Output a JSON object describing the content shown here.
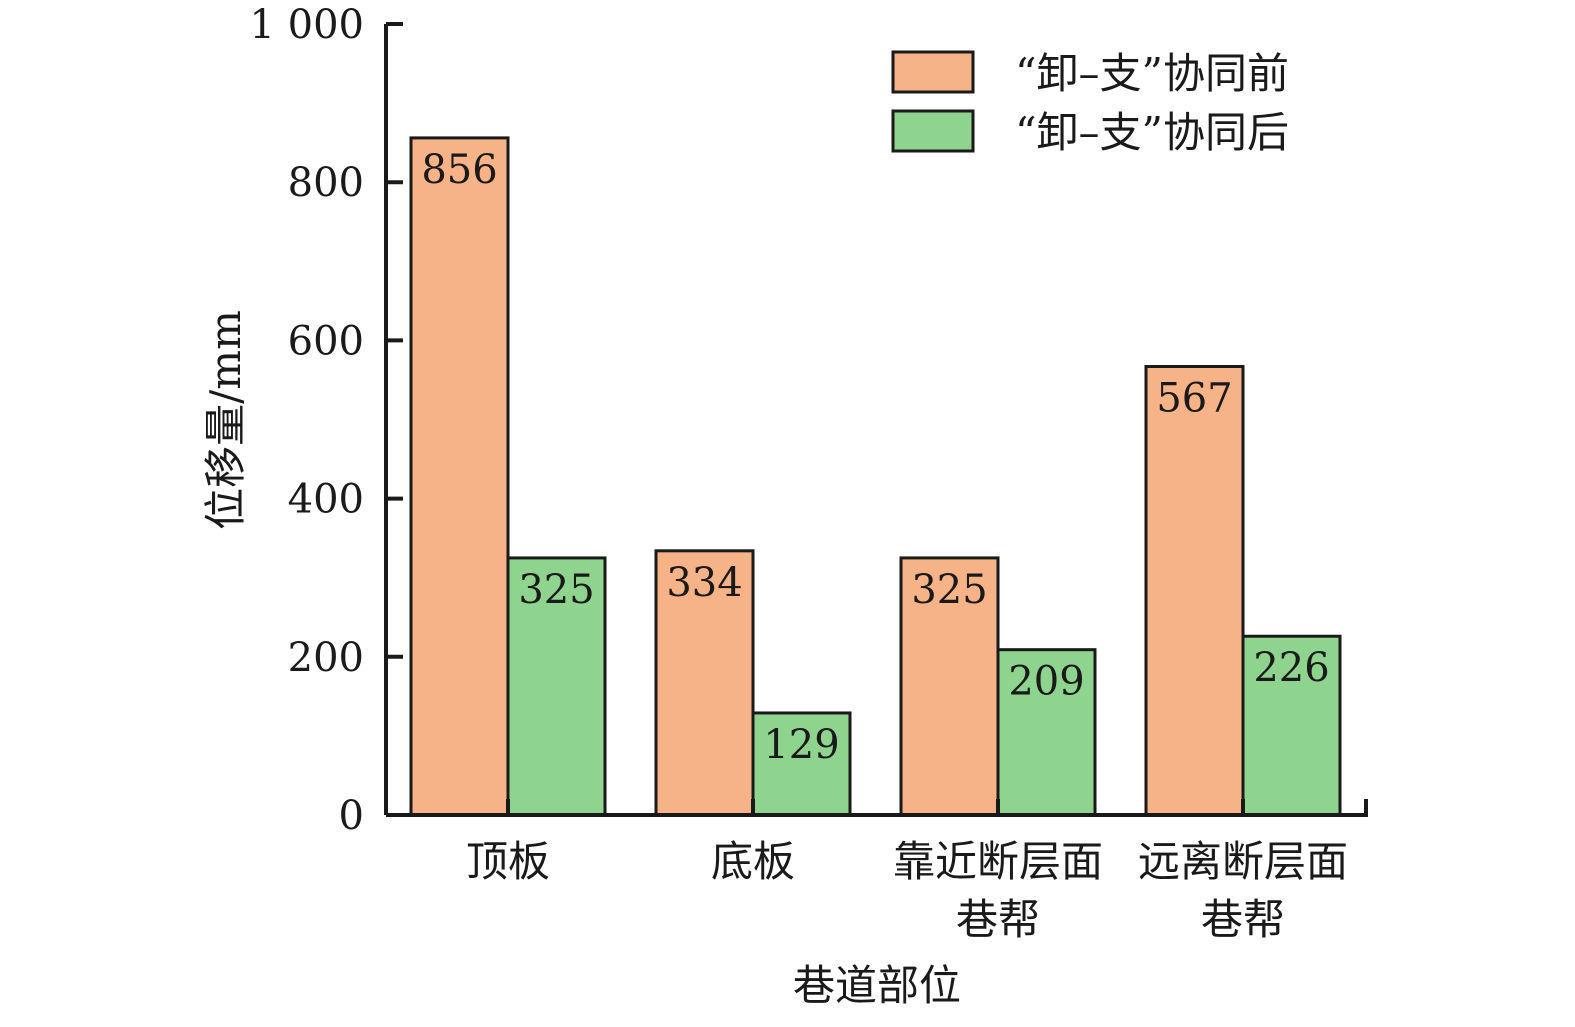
{
  "chart_data": {
    "type": "bar",
    "categories": [
      "顶板",
      "底板",
      "靠近断层面\n巷帮",
      "远离断层面\n巷帮"
    ],
    "series": [
      {
        "name": "“卸–支”协同前",
        "values": [
          856,
          334,
          325,
          567
        ],
        "color": "#F5B387"
      },
      {
        "name": "“卸–支”协同后",
        "values": [
          325,
          129,
          209,
          226
        ],
        "color": "#8ED48E"
      }
    ],
    "xlabel": "巷道部位",
    "ylabel": "位移量/mm",
    "ylim": [
      0,
      1000
    ],
    "yticks": [
      0,
      200,
      400,
      600,
      800,
      1000
    ],
    "ytick_labels": [
      "0",
      "200",
      "400",
      "600",
      "800",
      "1 000"
    ],
    "legend_position": "top-right",
    "grid": false
  }
}
